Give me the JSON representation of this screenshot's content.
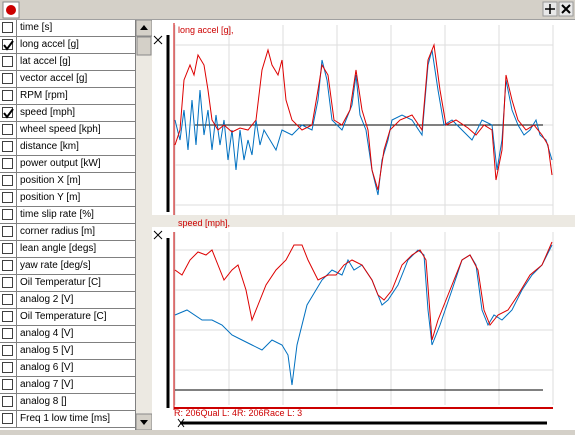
{
  "channels": [
    {
      "label": "time [s]",
      "checked": false
    },
    {
      "label": "long accel [g]",
      "checked": true
    },
    {
      "label": "lat accel [g]",
      "checked": false
    },
    {
      "label": "vector accel [g]",
      "checked": false
    },
    {
      "label": "RPM [rpm]",
      "checked": false
    },
    {
      "label": "speed [mph]",
      "checked": true
    },
    {
      "label": "wheel speed [kph]",
      "checked": false
    },
    {
      "label": "distance [km]",
      "checked": false
    },
    {
      "label": "power output [kW]",
      "checked": false
    },
    {
      "label": "position X [m]",
      "checked": false
    },
    {
      "label": "position Y [m]",
      "checked": false
    },
    {
      "label": "time slip rate [%]",
      "checked": false
    },
    {
      "label": "corner radius [m]",
      "checked": false
    },
    {
      "label": "lean angle [degs]",
      "checked": false
    },
    {
      "label": "yaw rate [deg/s]",
      "checked": false
    },
    {
      "label": "Oil Temperatur [C]",
      "checked": false
    },
    {
      "label": "analog 2 [V]",
      "checked": false
    },
    {
      "label": "Oil Temperature [C]",
      "checked": false
    },
    {
      "label": "analog 4 [V]",
      "checked": false
    },
    {
      "label": "analog 5 [V]",
      "checked": false
    },
    {
      "label": "analog 6 [V]",
      "checked": false
    },
    {
      "label": "analog 7 [V]",
      "checked": false
    },
    {
      "label": "analog 8 []",
      "checked": false
    },
    {
      "label": "Freq 1 low time [ms]",
      "checked": false
    }
  ],
  "graphs": [
    {
      "label": "long accel [g],"
    },
    {
      "label": "speed [mph],"
    }
  ],
  "footer": "R: 206Qual  L: 4R: 206Race  L: 3"
}
